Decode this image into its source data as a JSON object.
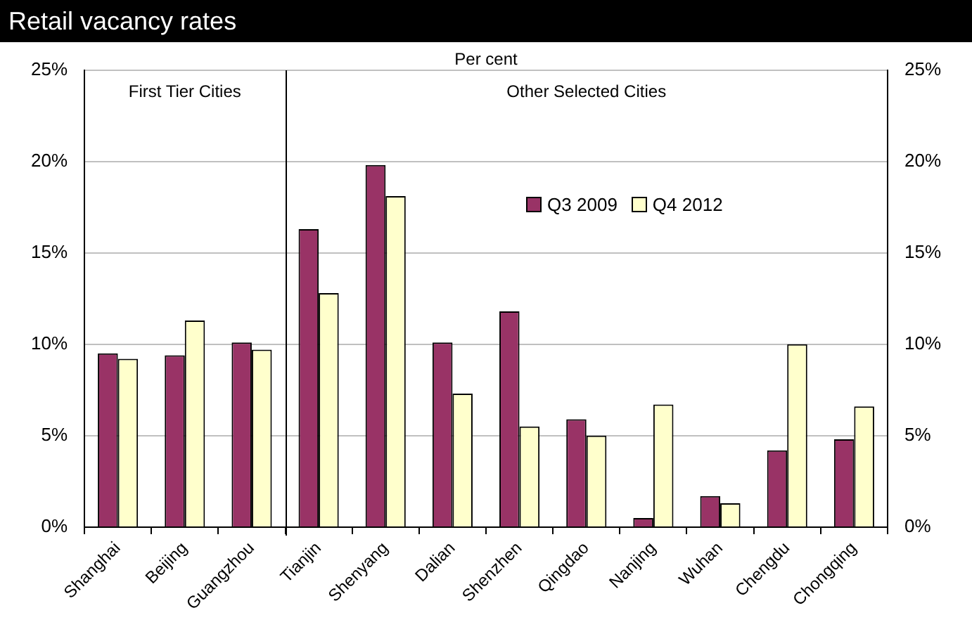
{
  "chart_data": {
    "type": "bar",
    "title": "Retail vacancy rates",
    "subtitle": "Per cent",
    "categories": [
      "Shanghai",
      "Beijing",
      "Guangzhou",
      "Tianjin",
      "Shenyang",
      "Dalian",
      "Shenzhen",
      "Qingdao",
      "Nanjing",
      "Wuhan",
      "Chengdu",
      "Chongqing"
    ],
    "series": [
      {
        "name": "Q3 2009",
        "color": "#993366",
        "values": [
          9.5,
          9.4,
          10.1,
          16.3,
          19.8,
          10.1,
          11.8,
          5.9,
          0.5,
          1.7,
          4.2,
          4.8
        ]
      },
      {
        "name": "Q4 2012",
        "color": "#ffffcc",
        "values": [
          9.2,
          11.3,
          9.7,
          12.8,
          18.1,
          7.3,
          5.5,
          5.0,
          6.7,
          1.3,
          10.0,
          6.6
        ]
      }
    ],
    "ylim": [
      0,
      25
    ],
    "yticks": [
      {
        "value": 0,
        "label": "0%"
      },
      {
        "value": 5,
        "label": "5%"
      },
      {
        "value": 10,
        "label": "10%"
      },
      {
        "value": 15,
        "label": "15%"
      },
      {
        "value": 20,
        "label": "20%"
      },
      {
        "value": 25,
        "label": "25%"
      }
    ],
    "y2lim": [
      0,
      25
    ],
    "y2ticks": [
      {
        "value": 0,
        "label": "0%"
      },
      {
        "value": 5,
        "label": "5%"
      },
      {
        "value": 10,
        "label": "10%"
      },
      {
        "value": 15,
        "label": "15%"
      },
      {
        "value": 20,
        "label": "20%"
      },
      {
        "value": 25,
        "label": "25%"
      }
    ],
    "annotations": [
      "First Tier Cities",
      "Other Selected Cities"
    ],
    "grid": "y",
    "legend": "top right"
  }
}
